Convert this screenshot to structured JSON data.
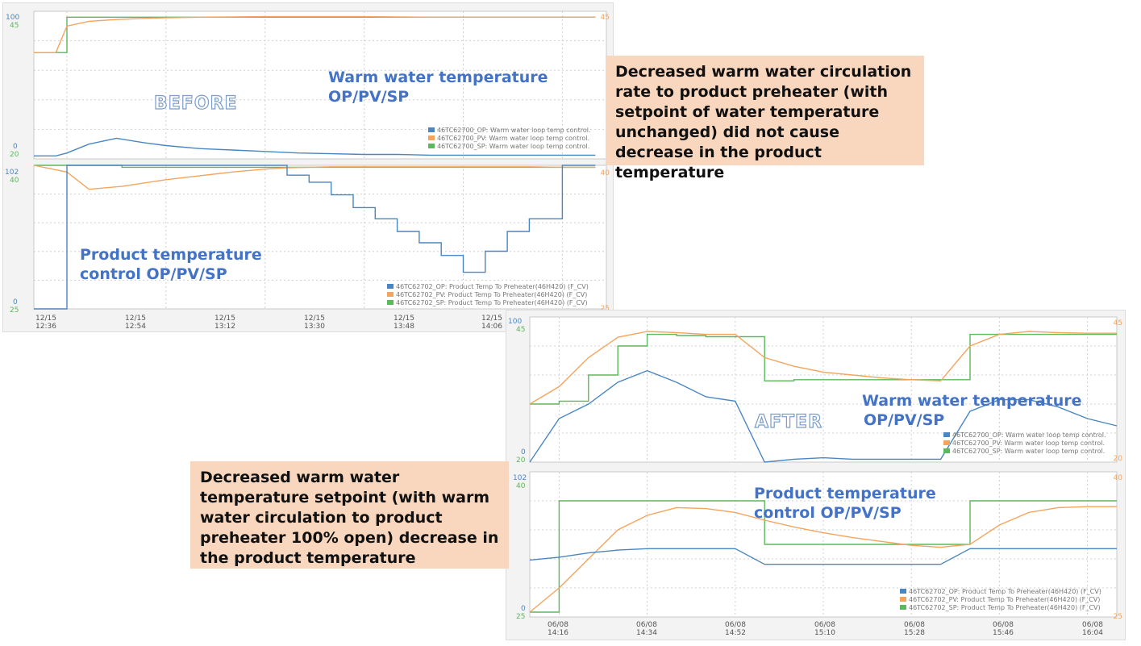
{
  "colors": {
    "op": "#4a86c2",
    "pv": "#f5a45d",
    "sp": "#5cb85c",
    "label": "#4472c4",
    "note_bg": "#f8d7be"
  },
  "before": {
    "stamp": "BEFORE",
    "top_label": [
      "Warm water temperature",
      "OP/PV/SP"
    ],
    "bottom_label": [
      "Product temperature",
      "control OP/PV/SP"
    ],
    "top_left_ticks": {
      "op_max": "100",
      "op_min": "0",
      "sp_max": "45",
      "sp_min": "20"
    },
    "top_right_ticks": {
      "max": "45"
    },
    "bottom_left_ticks": {
      "op_max": "102",
      "op_min": "0",
      "sp_max": "40",
      "sp_min": "25"
    },
    "bottom_right_ticks": {
      "max": "40",
      "min": "25"
    },
    "x_ticks": [
      [
        "12/15",
        "12:36"
      ],
      [
        "12/15",
        "12:54"
      ],
      [
        "12/15",
        "13:12"
      ],
      [
        "12/15",
        "13:30"
      ],
      [
        "12/15",
        "13:48"
      ],
      [
        "12/15",
        "14:06"
      ]
    ],
    "top_legend": [
      {
        "tag": "46TC62700_OP:",
        "desc": "Warm water loop temp control."
      },
      {
        "tag": "46TC62700_PV:",
        "desc": "Warm water loop temp control."
      },
      {
        "tag": "46TC62700_SP:",
        "desc": "Warm water loop temp control."
      }
    ],
    "bottom_legend": [
      {
        "tag": "46TC62702_OP:",
        "desc": "Product Temp To Preheater(46H420) (F_CV)"
      },
      {
        "tag": "46TC62702_PV:",
        "desc": "Product Temp To Preheater(46H420) (F_CV)"
      },
      {
        "tag": "46TC62702_SP:",
        "desc": "Product Temp To Preheater(46H420) (F_CV)"
      }
    ]
  },
  "after": {
    "stamp": "AFTER",
    "top_label": [
      "Warm water temperature",
      "OP/PV/SP"
    ],
    "bottom_label": [
      "Product temperature",
      "control OP/PV/SP"
    ],
    "top_left_ticks": {
      "op_max": "100",
      "op_min": "0",
      "sp_max": "45",
      "sp_min": "20"
    },
    "top_right_ticks": {
      "max": "45",
      "min": "20"
    },
    "bottom_left_ticks": {
      "op_max": "102",
      "op_min": "0",
      "sp_max": "40",
      "sp_min": "25"
    },
    "bottom_right_ticks": {
      "max": "40",
      "min": "25"
    },
    "x_ticks": [
      [
        "06/08",
        "14:16"
      ],
      [
        "06/08",
        "14:34"
      ],
      [
        "06/08",
        "14:52"
      ],
      [
        "06/08",
        "15:10"
      ],
      [
        "06/08",
        "15:28"
      ],
      [
        "06/08",
        "15:46"
      ],
      [
        "06/08",
        "16:04"
      ]
    ],
    "top_legend": [
      {
        "tag": "46TC62700_OP:",
        "desc": "Warm water loop temp control."
      },
      {
        "tag": "46TC62700_PV:",
        "desc": "Warm water loop temp control."
      },
      {
        "tag": "46TC62700_SP:",
        "desc": "Warm water loop temp control."
      }
    ],
    "bottom_legend": [
      {
        "tag": "46TC62702_OP:",
        "desc": "Product Temp To Preheater(46H420) (F_CV)"
      },
      {
        "tag": "46TC62702_PV:",
        "desc": "Product Temp To Preheater(46H420) (F_CV)"
      },
      {
        "tag": "46TC62702_SP:",
        "desc": "Product Temp To Preheater(46H420) (F_CV)"
      }
    ]
  },
  "notes": {
    "before": "Decreased warm water circulation rate to product preheater (with setpoint of water temperature unchanged) did not cause decrease in the product temperature",
    "after": "Decreased warm water temperature setpoint (with warm water circulation to product preheater 100% open) decrease in the product temperature"
  },
  "chart_data": [
    {
      "type": "line",
      "panel": "before-warm-water",
      "x": [
        "12:30",
        "12:34",
        "12:36",
        "12:40",
        "12:45",
        "12:50",
        "12:54",
        "13:00",
        "13:06",
        "13:12",
        "13:18",
        "13:24",
        "13:30",
        "13:36",
        "13:42",
        "13:48",
        "13:54",
        "14:00",
        "14:06",
        "14:12"
      ],
      "series": [
        {
          "name": "46TC62700_SP",
          "values": [
            38,
            38,
            44,
            44,
            44,
            44,
            44,
            44,
            44,
            44,
            44,
            44,
            44,
            44,
            44,
            44,
            44,
            44,
            44,
            44
          ]
        },
        {
          "name": "46TC62700_PV",
          "values": [
            38,
            38,
            42.5,
            43.3,
            43.6,
            43.8,
            43.9,
            44,
            44.05,
            44.1,
            44.1,
            44.1,
            44.1,
            44.05,
            44,
            44,
            44,
            44,
            44,
            44
          ]
        },
        {
          "name": "46TC62700_OP",
          "values": [
            2,
            2,
            4,
            10,
            14,
            11,
            9,
            7,
            6,
            5,
            4,
            3.5,
            3,
            3,
            2.5,
            2.5,
            2.5,
            2.5,
            2.5,
            2.5
          ]
        }
      ],
      "ylim_left_op": [
        0,
        100
      ],
      "ylim_left_sp": [
        20,
        45
      ],
      "ylim_right": [
        20,
        45
      ]
    },
    {
      "type": "line",
      "panel": "before-product",
      "x": [
        "12:30",
        "12:36",
        "12:40",
        "12:46",
        "12:54",
        "13:00",
        "13:06",
        "13:12",
        "13:16",
        "13:20",
        "13:24",
        "13:28",
        "13:32",
        "13:36",
        "13:40",
        "13:44",
        "13:48",
        "13:52",
        "13:56",
        "14:00",
        "14:06",
        "14:12"
      ],
      "series": [
        {
          "name": "46TC62702_SP",
          "values": [
            40,
            40,
            40,
            39.8,
            39.8,
            39.8,
            39.8,
            39.8,
            39.8,
            39.8,
            39.8,
            39.8,
            39.8,
            39.8,
            39.8,
            39.8,
            39.8,
            39.8,
            39.8,
            39.8,
            39.8,
            39.8
          ]
        },
        {
          "name": "46TC62702_PV",
          "values": [
            40,
            39.3,
            37.5,
            37.8,
            38.5,
            38.9,
            39.3,
            39.6,
            39.75,
            39.8,
            39.85,
            39.85,
            39.85,
            39.85,
            39.85,
            39.85,
            39.85,
            39.85,
            39.85,
            39.85,
            39.8,
            39.8
          ]
        },
        {
          "name": "46TC62702_OP",
          "values": [
            0,
            102,
            102,
            102,
            102,
            102,
            102,
            102,
            95,
            90,
            81,
            72,
            64,
            55,
            47,
            38,
            26,
            41,
            55,
            64,
            102,
            102
          ]
        }
      ],
      "ylim_left_op": [
        0,
        102
      ],
      "ylim_left_sp": [
        25,
        40
      ],
      "ylim_right": [
        25,
        40
      ]
    },
    {
      "type": "line",
      "panel": "after-warm-water",
      "x": [
        "14:10",
        "14:16",
        "14:22",
        "14:28",
        "14:34",
        "14:40",
        "14:46",
        "14:52",
        "14:58",
        "15:04",
        "15:10",
        "15:16",
        "15:22",
        "15:28",
        "15:34",
        "15:40",
        "15:46",
        "15:52",
        "15:58",
        "16:04",
        "16:10"
      ],
      "series": [
        {
          "name": "46TC62700_SP",
          "values": [
            30,
            30.5,
            35,
            40,
            42,
            41.8,
            41.6,
            41.6,
            34,
            34.2,
            34.2,
            34.2,
            34.2,
            34.2,
            34.2,
            42,
            42,
            42,
            42,
            42,
            42
          ]
        },
        {
          "name": "46TC62700_PV",
          "values": [
            30,
            33,
            38,
            41.5,
            42.5,
            42.3,
            42,
            42,
            38,
            36.5,
            35.5,
            35,
            34.5,
            34.2,
            34,
            40,
            42,
            42.5,
            42.3,
            42.2,
            42.2
          ]
        },
        {
          "name": "46TC62700_OP",
          "values": [
            0,
            30,
            40,
            55,
            63,
            55,
            45,
            42,
            0,
            2,
            3,
            2,
            2,
            2,
            2,
            35,
            43,
            43,
            38,
            30,
            25
          ]
        }
      ],
      "ylim_left_op": [
        0,
        100
      ],
      "ylim_left_sp": [
        20,
        45
      ],
      "ylim_right": [
        20,
        45
      ]
    },
    {
      "type": "line",
      "panel": "after-product",
      "x": [
        "14:10",
        "14:16",
        "14:22",
        "14:28",
        "14:34",
        "14:40",
        "14:46",
        "14:52",
        "14:58",
        "15:04",
        "15:10",
        "15:16",
        "15:22",
        "15:28",
        "15:34",
        "15:40",
        "15:46",
        "15:52",
        "15:58",
        "16:04",
        "16:10"
      ],
      "series": [
        {
          "name": "46TC62702_SP",
          "values": [
            25.5,
            37,
            37,
            37,
            37,
            37,
            37,
            37,
            32.5,
            32.5,
            32.5,
            32.5,
            32.5,
            32.5,
            32.5,
            37,
            37,
            37,
            37,
            37,
            37
          ]
        },
        {
          "name": "46TC62702_PV",
          "values": [
            25.5,
            28,
            31,
            34,
            35.5,
            36.3,
            36.2,
            35.8,
            35,
            34.3,
            33.7,
            33.2,
            32.8,
            32.4,
            32.2,
            32.5,
            34.5,
            35.8,
            36.3,
            36.4,
            36.4
          ]
        },
        {
          "name": "46TC62702_OP",
          "values": [
            40,
            42,
            45,
            47,
            48,
            48,
            48,
            48,
            37,
            37,
            37,
            37,
            37,
            37,
            37,
            48,
            48,
            48,
            48,
            48,
            48
          ]
        }
      ],
      "ylim_left_op": [
        0,
        102
      ],
      "ylim_left_sp": [
        25,
        40
      ],
      "ylim_right": [
        25,
        40
      ]
    }
  ]
}
